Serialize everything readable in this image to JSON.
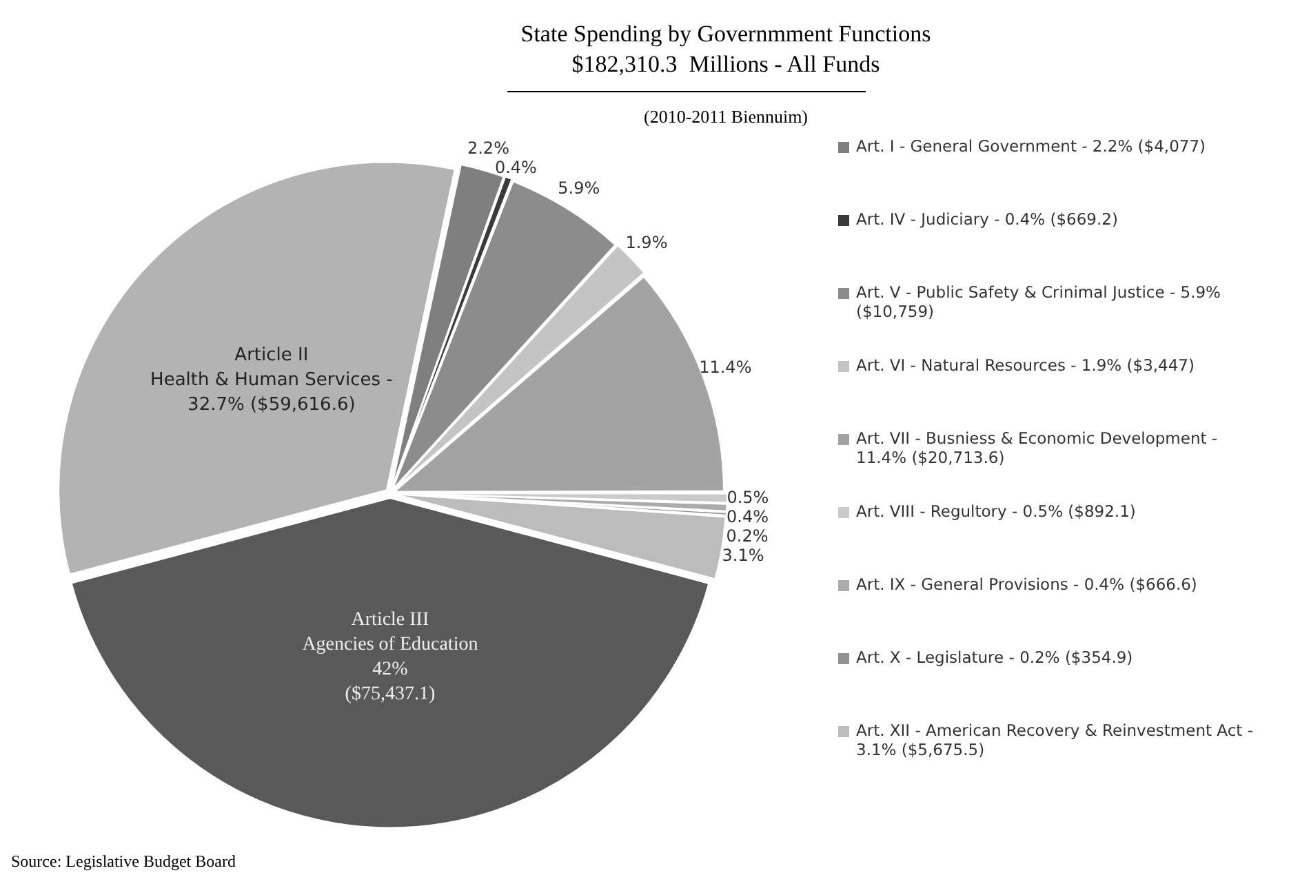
{
  "chart_data": {
    "type": "pie",
    "title": "State Spending by Governmment Functions\n$182,310.3  Millions - All Funds",
    "subtitle": "(2010-2011 Biennuim)",
    "categories": [
      "Art. I - General Government - 2.2% ($4,077)",
      "Art. IV - Judiciary - 0.4% ($669.2)",
      "Art. V - Public Safety & Crinimal Justice - 5.9% ($10,759)",
      "Art. VI - Natural Resources - 1.9% ($3,447)",
      "Art. VII - Busniess & Economic Development - 11.4%  ($20,713.6)",
      "Art. VIII - Regultory - 0.5% ($892.1)",
      "Art. IX - General Provisions - 0.4% ($666.6)",
      "Art. X - Legislature - 0.2% ($354.9)",
      "Art. XII - American Recovery & Reinvestment Act - 3.1%  ($5,675.5)",
      "Article III\nAgencies of Education",
      "Article II\nHealth & Human Services -"
    ],
    "values": [
      2.2,
      0.4,
      5.9,
      1.9,
      11.4,
      0.5,
      0.4,
      0.2,
      3.1,
      42,
      32.7
    ],
    "colors": [
      "#7f7f7f",
      "#3a3a3a",
      "#8c8c8c",
      "#c4c4c4",
      "#a3a3a3",
      "#cacaca",
      "#ababab",
      "#929292",
      "#bcbcbc",
      "#595959",
      "#b3b3b3"
    ],
    "value_labels": [
      "2.2%",
      "0.4%",
      "5.9%",
      "1.9%",
      "11.4%",
      "0.5%",
      "0.4%",
      "0.2%",
      "3.1%",
      "42%\n($75,437.1)",
      "32.7% ($59,616.6)"
    ],
    "legend": "right",
    "annotations": [
      "Source: Legislative Budget Board"
    ]
  }
}
